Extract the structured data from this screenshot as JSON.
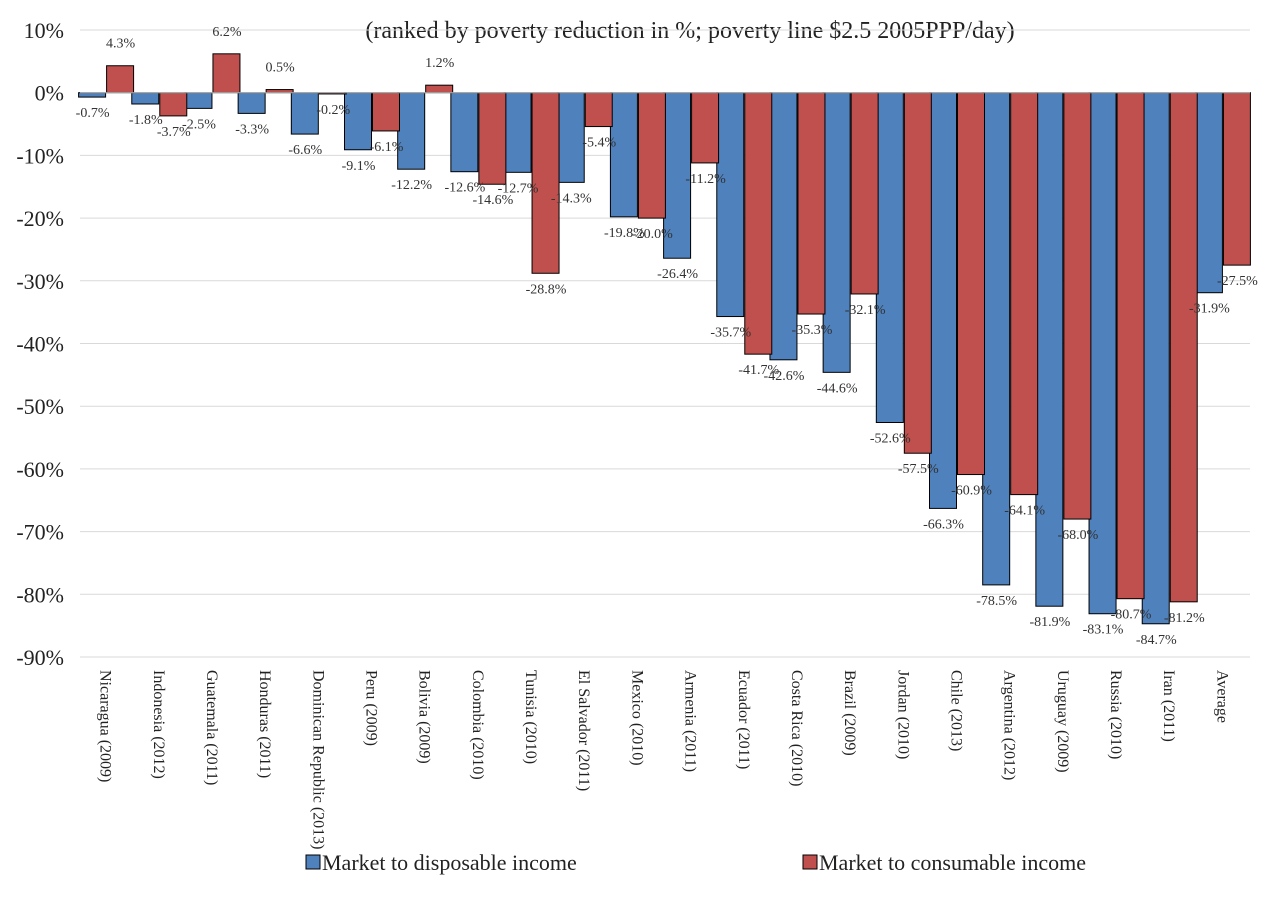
{
  "chart_data": {
    "type": "bar",
    "subtitle": "(ranked by poverty reduction in %; poverty line $2.5 2005PPP/day)",
    "ylim": [
      -90,
      10
    ],
    "yticks": [
      "10%",
      "0%",
      "-10%",
      "-20%",
      "-30%",
      "-40%",
      "-50%",
      "-60%",
      "-70%",
      "-80%",
      "-90%"
    ],
    "grid": true,
    "legend_position": "bottom",
    "categories": [
      "Nicaragua (2009)",
      "Indonesia (2012)",
      "Guatemala (2011)",
      "Honduras (2011)",
      "Dominican Republic (2013)",
      "Peru (2009)",
      "Bolivia (2009)",
      "Colombia (2010)",
      "Tunisia (2010)",
      "El Salvador (2011)",
      "Mexico (2010)",
      "Armenia (2011)",
      "Ecuador (2011)",
      "Costa Rica (2010)",
      "Brazil (2009)",
      "Jordan (2010)",
      "Chile (2013)",
      "Argentina (2012)",
      "Uruguay (2009)",
      "Russia (2010)",
      "Iran (2011)",
      "Average"
    ],
    "series": [
      {
        "name": "Market to disposable income",
        "color": "#4f81bd",
        "values": [
          -0.7,
          -1.8,
          -2.5,
          -3.3,
          -6.6,
          -9.1,
          -12.2,
          -12.6,
          -12.7,
          -14.3,
          -19.8,
          -26.4,
          -35.7,
          -42.6,
          -44.6,
          -52.6,
          -66.3,
          -78.5,
          -81.9,
          -83.1,
          -84.7,
          -31.9
        ],
        "labels": [
          "-0.7%",
          "-1.8%",
          "-2.5%",
          "-3.3%",
          "-6.6%",
          "-9.1%",
          "-12.2%",
          "-12.6%",
          "-12.7%",
          "-14.3%",
          "-19.8%",
          "-26.4%",
          "-35.7%",
          "-42.6%",
          "-44.6%",
          "-52.6%",
          "-66.3%",
          "-78.5%",
          "-81.9%",
          "-83.1%",
          "-84.7%",
          "-31.9%"
        ]
      },
      {
        "name": "Market to consumable income",
        "color": "#c0504d",
        "values": [
          4.3,
          -3.7,
          6.2,
          0.5,
          -0.2,
          -6.1,
          1.2,
          -14.6,
          -28.8,
          -5.4,
          -20.0,
          -11.2,
          -41.7,
          -35.3,
          -32.1,
          -57.5,
          -60.9,
          -64.1,
          -68.0,
          -80.7,
          -81.2,
          -27.5
        ],
        "labels": [
          "4.3%",
          "-3.7%",
          "6.2%",
          "0.5%",
          "-0.2%",
          "-6.1%",
          "1.2%",
          "-14.6%",
          "-28.8%",
          "-5.4%",
          "-20.0%",
          "-11.2%",
          "-41.7%",
          "-35.3%",
          "-32.1%",
          "-57.5%",
          "-60.9%",
          "-64.1%",
          "-68.0%",
          "-80.7%",
          "-81.2%",
          "-27.5%"
        ]
      }
    ]
  }
}
